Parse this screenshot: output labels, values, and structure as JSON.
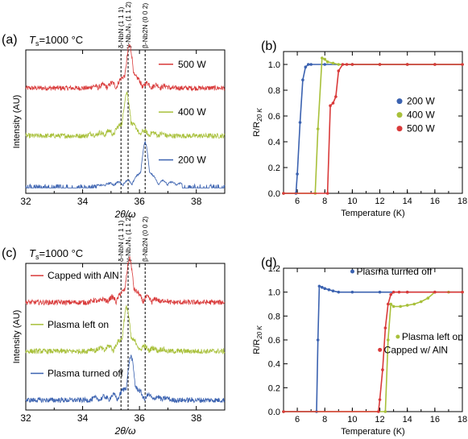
{
  "colors": {
    "red": "#d93a3a",
    "green": "#a8c03a",
    "blue": "#3b62b0",
    "axis": "#000000"
  },
  "chart_data": [
    {
      "panel": "(a)",
      "type": "line",
      "annotation": "T_s=1000 °C",
      "annotation_parts": {
        "t": "T",
        "sub": "s",
        "rest": "=1000 °C"
      },
      "xlabel": "2θ/ω",
      "ylabel": "Intensity (AU)",
      "xlim": [
        32,
        39
      ],
      "xticks": [
        "32",
        "34",
        "36",
        "38"
      ],
      "reference_lines": [
        {
          "x": 35.35,
          "label": "δ-NbN (1 1 1)"
        },
        {
          "x": 35.6,
          "label": "γ-Nb₄N₃ (1 1 2)"
        },
        {
          "x": 36.2,
          "label": "β-Nb2N (0 0 2)"
        }
      ],
      "series": [
        {
          "name": "500 W",
          "color": "red",
          "peak_x": 35.65,
          "offset": 2
        },
        {
          "name": "400 W",
          "color": "green",
          "peak_x": 35.55,
          "offset": 1
        },
        {
          "name": "200 W",
          "color": "blue",
          "peak_x": 36.2,
          "offset": 0
        }
      ]
    },
    {
      "panel": "(b)",
      "type": "line",
      "xlabel": "Temperature (K)",
      "ylabel": "R/R_20K",
      "ylabel_parts": {
        "main": "R/R",
        "sub": "20 K"
      },
      "xlim": [
        5,
        18
      ],
      "ylim": [
        0,
        1.1
      ],
      "xticks": [
        "6",
        "8",
        "10",
        "12",
        "14",
        "16",
        "18"
      ],
      "yticks": [
        "0.0",
        "0.2",
        "0.4",
        "0.6",
        "0.8",
        "1.0"
      ],
      "legend_position": "right",
      "series": [
        {
          "name": "200 W",
          "color": "blue",
          "x": [
            5.0,
            5.9,
            6.0,
            6.2,
            6.4,
            6.6,
            6.8,
            7.0,
            8,
            10,
            12,
            14,
            16,
            18
          ],
          "y": [
            0.0,
            0.0,
            0.15,
            0.55,
            0.88,
            0.98,
            1.0,
            1.0,
            1.0,
            1.0,
            1.0,
            1.0,
            1.0,
            1.0
          ]
        },
        {
          "name": "400 W",
          "color": "green",
          "x": [
            5.0,
            7.3,
            7.5,
            7.8,
            8.0,
            8.2,
            8.6,
            9.0,
            10,
            12,
            14,
            16,
            18
          ],
          "y": [
            0.0,
            0.0,
            0.5,
            1.05,
            1.04,
            1.02,
            1.01,
            1.0,
            1.0,
            1.0,
            1.0,
            1.0,
            1.0
          ]
        },
        {
          "name": "500 W",
          "color": "red",
          "x": [
            5.0,
            8.2,
            8.4,
            8.6,
            8.8,
            9.0,
            9.3,
            9.6,
            10,
            12,
            14,
            16,
            18
          ],
          "y": [
            0.0,
            0.0,
            0.68,
            0.7,
            0.75,
            0.95,
            1.0,
            1.0,
            1.0,
            1.0,
            1.0,
            1.0,
            1.0
          ]
        }
      ]
    },
    {
      "panel": "(c)",
      "type": "line",
      "annotation": "T_s=1000 °C",
      "annotation_parts": {
        "t": "T",
        "sub": "s",
        "rest": "=1000 °C"
      },
      "xlabel": "2θ/ω",
      "ylabel": "Intensity (AU)",
      "xlim": [
        32,
        39
      ],
      "xticks": [
        "32",
        "34",
        "36",
        "38"
      ],
      "reference_lines": [
        {
          "x": 35.35,
          "label": "δ-NbN (1 1 1)"
        },
        {
          "x": 35.6,
          "label": "γ-Nb₄N₃ (1 1 2)"
        },
        {
          "x": 36.2,
          "label": "β-Nb2N (0 0 2)"
        }
      ],
      "series": [
        {
          "name": "Capped with AlN",
          "color": "red",
          "peak_x": 35.65,
          "offset": 2
        },
        {
          "name": "Plasma left on",
          "color": "green",
          "peak_x": 35.55,
          "offset": 1
        },
        {
          "name": "Plasma turned off",
          "color": "blue",
          "peak_x": 35.7,
          "offset": 0
        }
      ]
    },
    {
      "panel": "(d)",
      "type": "line",
      "xlabel": "Temperature (K)",
      "ylabel": "R/R_20K",
      "ylabel_parts": {
        "main": "R/R",
        "sub": "20 K"
      },
      "xlim": [
        5,
        18
      ],
      "ylim": [
        0,
        1.2
      ],
      "xticks": [
        "6",
        "8",
        "10",
        "12",
        "14",
        "16",
        "18"
      ],
      "yticks": [
        "0.0",
        "0.2",
        "0.4",
        "0.6",
        "0.8",
        "1.0",
        "1.2"
      ],
      "series": [
        {
          "name": "Plasma turned off",
          "color": "blue",
          "x": [
            5.0,
            7.4,
            7.5,
            7.6,
            7.8,
            8.0,
            8.3,
            8.6,
            9.0,
            10,
            12,
            14,
            16,
            18
          ],
          "y": [
            0.0,
            0.0,
            0.6,
            1.05,
            1.04,
            1.03,
            1.02,
            1.01,
            1.0,
            1.0,
            1.0,
            1.0,
            1.0,
            1.0
          ]
        },
        {
          "name": "Plasma left on",
          "color": "green",
          "x": [
            5.0,
            12.4,
            12.6,
            12.8,
            13.0,
            13.5,
            14.0,
            14.5,
            15.0,
            15.5,
            16,
            17,
            18
          ],
          "y": [
            0.0,
            0.0,
            0.6,
            0.9,
            0.88,
            0.88,
            0.89,
            0.9,
            0.92,
            0.95,
            1.0,
            1.0,
            1.0
          ]
        },
        {
          "name": "Capped w/ AlN",
          "color": "red",
          "x": [
            5.0,
            11.9,
            12.0,
            12.2,
            12.4,
            12.6,
            12.8,
            13.0,
            13.4,
            14,
            16,
            18
          ],
          "y": [
            0.0,
            0.0,
            0.1,
            0.35,
            0.7,
            0.9,
            0.98,
            1.0,
            1.0,
            1.0,
            1.0,
            1.0
          ]
        }
      ]
    }
  ]
}
